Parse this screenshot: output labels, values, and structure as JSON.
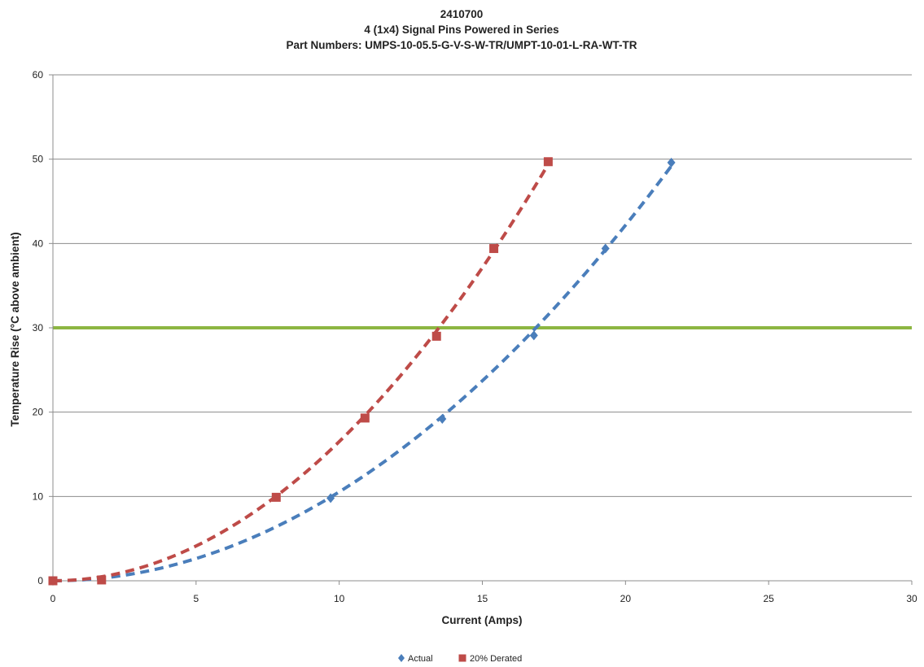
{
  "chart_data": {
    "type": "scatter",
    "title_lines": [
      "2410700",
      "4 (1x4) Signal Pins Powered in Series",
      "Part Numbers: UMPS-10-05.5-G-V-S-W-TR/UMPT-10-01-L-RA-WT-TR"
    ],
    "xlabel": "Current (Amps)",
    "ylabel": "Temperature Rise (°C above ambient)",
    "xlim": [
      0,
      30
    ],
    "ylim": [
      0,
      60
    ],
    "x_ticks": [
      0,
      5,
      10,
      15,
      20,
      25,
      30
    ],
    "y_ticks": [
      0,
      10,
      20,
      30,
      40,
      50,
      60
    ],
    "grid": "horizontal",
    "legend_position": "bottom",
    "limit_line": {
      "y": 30,
      "color": "#8DB642"
    },
    "series": [
      {
        "name": "Actual",
        "marker": "diamond",
        "color": "#4A7EBB",
        "x": [
          0,
          9.7,
          13.6,
          16.8,
          19.3,
          21.6
        ],
        "y": [
          0,
          9.8,
          19.2,
          29.1,
          39.4,
          49.6
        ]
      },
      {
        "name": "20% Derated",
        "marker": "square",
        "color": "#BE4B48",
        "x": [
          0,
          1.7,
          7.8,
          10.9,
          13.4,
          15.4,
          17.3
        ],
        "y": [
          0,
          0.1,
          9.9,
          19.3,
          29.0,
          39.4,
          49.7
        ]
      }
    ]
  }
}
